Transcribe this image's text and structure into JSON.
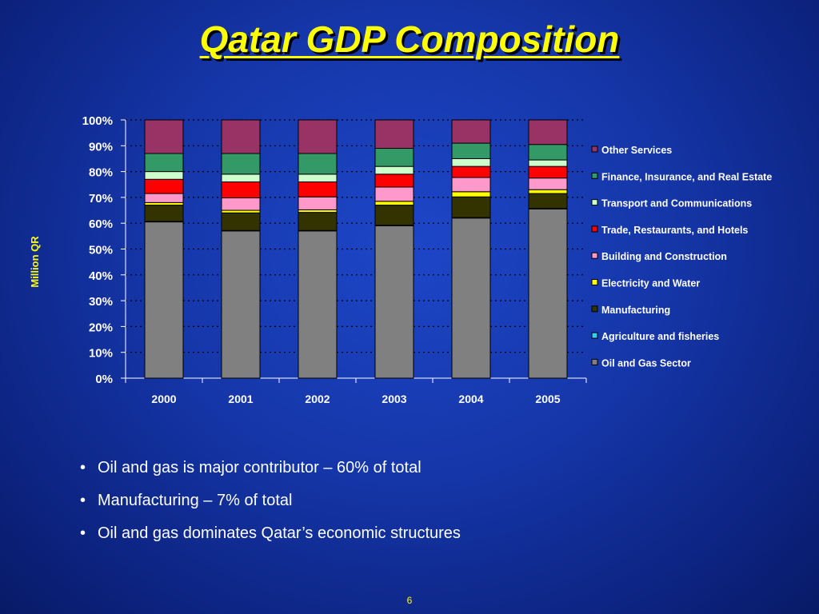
{
  "title": "Qatar GDP Composition",
  "bullets": [
    "Oil and gas is major contributor – 60% of total",
    "Manufacturing – 7% of total",
    "Oil and gas dominates Qatar’s economic structures"
  ],
  "page_number": "6",
  "chart_data": {
    "type": "bar",
    "stacked": "percent",
    "categories": [
      "2000",
      "2001",
      "2002",
      "2003",
      "2004",
      "2005"
    ],
    "ylabel": "Million QR",
    "xlabel": "",
    "ylim": [
      0,
      100
    ],
    "yticks": [
      "0%",
      "10%",
      "20%",
      "30%",
      "40%",
      "50%",
      "60%",
      "70%",
      "80%",
      "90%",
      "100%"
    ],
    "grid": true,
    "legend_position": "right",
    "series": [
      {
        "name": "Oil and Gas Sector",
        "color": "#808080",
        "values": [
          60.5,
          57.0,
          57.0,
          59.0,
          62.0,
          65.5
        ]
      },
      {
        "name": "Agriculture and fisheries",
        "color": "#33ccff",
        "values": [
          0.2,
          0.2,
          0.2,
          0.2,
          0.2,
          0.2
        ]
      },
      {
        "name": "Manufacturing",
        "color": "#333300",
        "values": [
          6.3,
          6.8,
          7.0,
          7.8,
          8.0,
          5.8
        ]
      },
      {
        "name": "Electricity and Water",
        "color": "#ffff00",
        "values": [
          1.0,
          1.0,
          1.0,
          1.5,
          2.0,
          1.5
        ]
      },
      {
        "name": "Building and Construction",
        "color": "#ff99cc",
        "values": [
          3.5,
          4.8,
          5.0,
          5.5,
          5.5,
          4.5
        ]
      },
      {
        "name": "Trade, Restaurants, and Hotels",
        "color": "#ff0000",
        "values": [
          5.5,
          6.2,
          5.8,
          5.0,
          4.3,
          4.5
        ]
      },
      {
        "name": "Transport and Communications",
        "color": "#ccffcc",
        "values": [
          3.0,
          3.0,
          3.0,
          3.0,
          3.0,
          2.5
        ]
      },
      {
        "name": "Finance, Insurance, and Real Estate",
        "color": "#339966",
        "values": [
          7.0,
          8.0,
          8.0,
          7.0,
          6.0,
          6.0
        ]
      },
      {
        "name": "Other Services",
        "color": "#993366",
        "values": [
          13.0,
          13.0,
          13.0,
          11.0,
          9.0,
          9.5
        ]
      }
    ]
  }
}
